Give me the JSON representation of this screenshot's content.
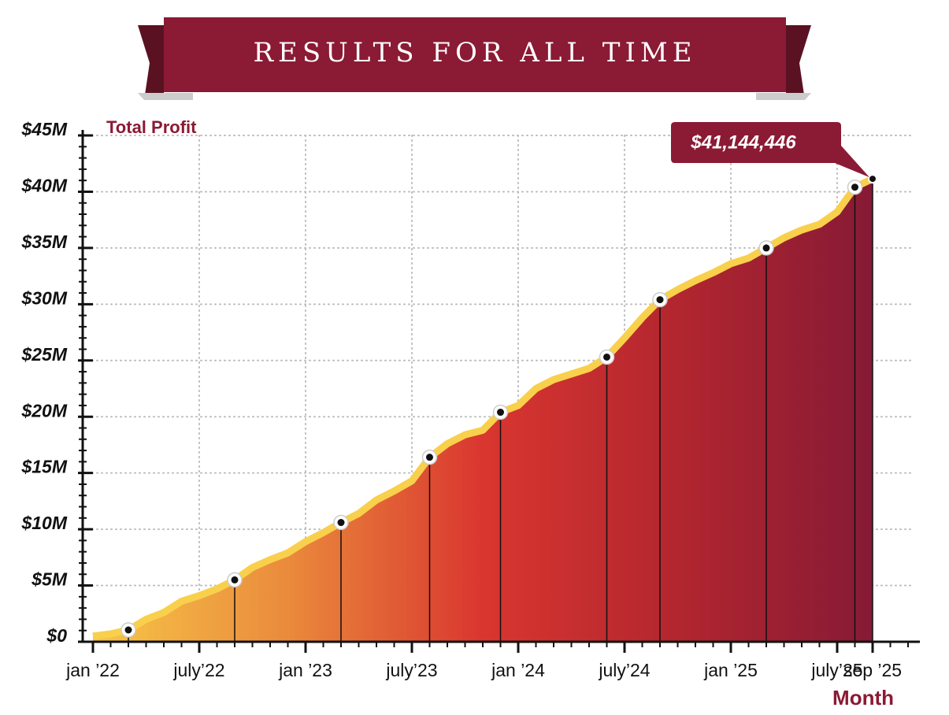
{
  "chart_data": {
    "type": "area",
    "title": "RESULTS FOR ALL TIME",
    "y_label": "Total Profit",
    "x_label": "Month",
    "categories": [
      "jan ’22",
      null,
      null,
      null,
      null,
      null,
      "july’22",
      null,
      null,
      null,
      null,
      null,
      "jan ’23",
      null,
      null,
      null,
      null,
      null,
      "july’23",
      null,
      null,
      null,
      null,
      null,
      "jan ’24",
      null,
      null,
      null,
      null,
      null,
      "july’24",
      null,
      null,
      null,
      null,
      null,
      "jan ’25",
      null,
      null,
      null,
      null,
      null,
      "july’25",
      null,
      "sep ’25"
    ],
    "values": [
      0.5,
      0.7,
      1.05,
      2.0,
      2.6,
      3.6,
      4.1,
      4.7,
      5.5,
      6.6,
      7.3,
      7.9,
      8.9,
      9.7,
      10.6,
      11.4,
      12.6,
      13.4,
      14.3,
      16.4,
      17.6,
      18.4,
      18.8,
      20.4,
      21.0,
      22.5,
      23.3,
      23.8,
      24.3,
      25.3,
      27.0,
      28.8,
      30.4,
      31.3,
      32.1,
      32.8,
      33.6,
      34.1,
      35.0,
      35.9,
      36.6,
      37.1,
      38.2,
      40.4,
      41.144446
    ],
    "value_labels": [
      null,
      null,
      null,
      null,
      null,
      null,
      null,
      null,
      null,
      null,
      null,
      null,
      null,
      null,
      null,
      null,
      null,
      null,
      null,
      null,
      null,
      null,
      null,
      null,
      null,
      null,
      null,
      null,
      null,
      null,
      null,
      null,
      null,
      null,
      null,
      null,
      null,
      null,
      null,
      null,
      null,
      null,
      null,
      null,
      "$41,144,446"
    ],
    "markers": [
      2,
      8,
      14,
      19,
      23,
      29,
      32,
      38,
      43,
      44
    ],
    "line_color": "#f8d04c",
    "grid": true,
    "ylim": [
      0,
      45
    ],
    "yticks": [
      {
        "value": 0,
        "label": "$0"
      },
      {
        "value": 5,
        "label": "$5M"
      },
      {
        "value": 10,
        "label": "$10M"
      },
      {
        "value": 15,
        "label": "$15M"
      },
      {
        "value": 20,
        "label": "$20M"
      },
      {
        "value": 25,
        "label": "$25M"
      },
      {
        "value": 30,
        "label": "$30M"
      },
      {
        "value": 35,
        "label": "$35M"
      },
      {
        "value": 40,
        "label": "$40M"
      },
      {
        "value": 45,
        "label": "$45M"
      }
    ]
  }
}
